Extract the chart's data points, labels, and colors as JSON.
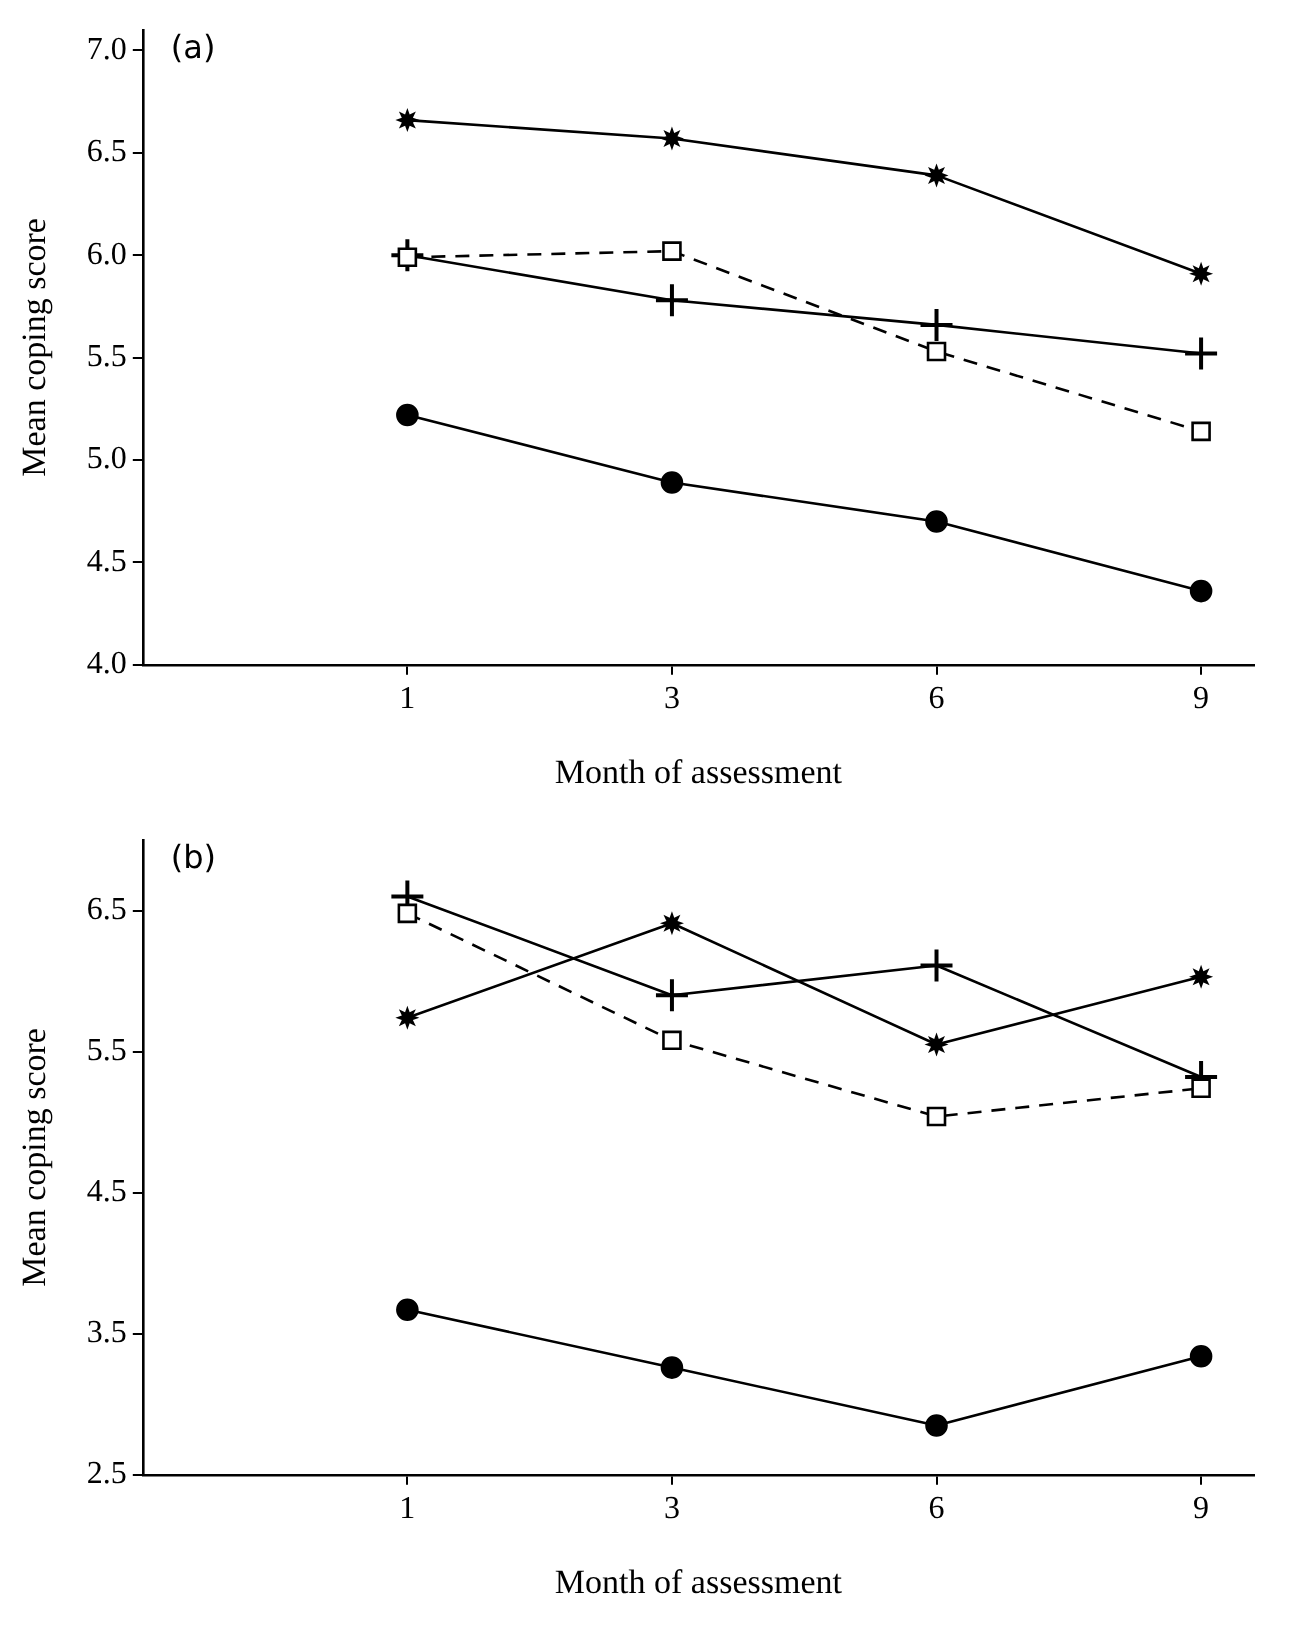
{
  "chart_data": [
    {
      "type": "line",
      "title": "(a)",
      "xlabel": "Month of assessment",
      "ylabel": "Mean coping score",
      "categories": [
        "1",
        "3",
        "6",
        "9"
      ],
      "ylim": [
        4.0,
        7.1
      ],
      "yticks": [
        {
          "value": 4.0,
          "label": "4.0"
        },
        {
          "value": 4.5,
          "label": "4.5"
        },
        {
          "value": 5.0,
          "label": "5.0"
        },
        {
          "value": 5.5,
          "label": "5.5"
        },
        {
          "value": 6.0,
          "label": "6.0"
        },
        {
          "value": 6.5,
          "label": "6.5"
        },
        {
          "value": 7.0,
          "label": "7.0"
        }
      ],
      "grid": false,
      "legend": false,
      "series": [
        {
          "color": "#000000",
          "marker": "star",
          "line_style": "solid",
          "values": [
            6.66,
            6.57,
            6.39,
            5.91
          ]
        },
        {
          "color": "#000000",
          "marker": "square",
          "line_style": "dashed",
          "values": [
            5.99,
            6.02,
            5.53,
            5.14
          ]
        },
        {
          "color": "#000000",
          "marker": "cross",
          "line_style": "solid",
          "values": [
            6.0,
            5.78,
            5.66,
            5.52
          ]
        },
        {
          "color": "#000000",
          "marker": "circle",
          "line_style": "solid",
          "values": [
            5.22,
            4.89,
            4.7,
            4.36
          ]
        }
      ]
    },
    {
      "type": "line",
      "title": "(b)",
      "xlabel": "Month of assessment",
      "ylabel": "Mean coping score",
      "categories": [
        "1",
        "3",
        "6",
        "9"
      ],
      "ylim": [
        2.5,
        7.0
      ],
      "yticks": [
        2.5,
        3.5,
        4.5,
        5.5,
        6.5
      ],
      "grid": false,
      "legend": false,
      "series": [
        {
          "color": "#000000",
          "marker": "star",
          "line_style": "solid",
          "values": [
            5.74,
            6.41,
            5.55,
            6.03
          ]
        },
        {
          "color": "#000000",
          "marker": "square",
          "line_style": "dashed",
          "values": [
            6.48,
            5.58,
            5.04,
            5.24
          ]
        },
        {
          "color": "#000000",
          "marker": "cross",
          "line_style": "solid",
          "values": [
            6.6,
            5.9,
            6.11,
            5.32
          ]
        },
        {
          "color": "#000000",
          "marker": "circle",
          "line_style": "solid",
          "values": [
            3.67,
            3.26,
            2.85,
            3.34
          ]
        }
      ]
    }
  ]
}
